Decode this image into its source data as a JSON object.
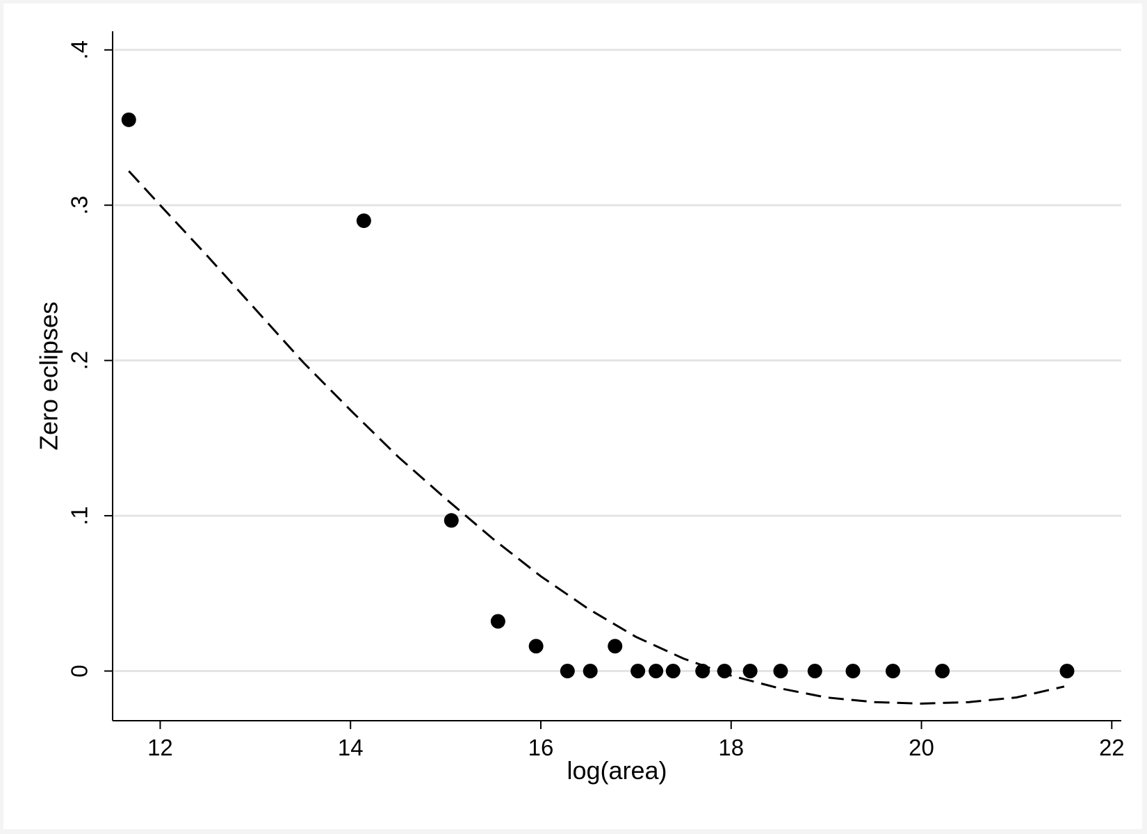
{
  "chart_data": {
    "type": "scatter",
    "title": "",
    "xlabel": "log(area)",
    "ylabel": "Zero eclipses",
    "xlim": [
      11.5,
      22.1
    ],
    "ylim": [
      -0.032,
      0.412
    ],
    "xticks": [
      12,
      14,
      16,
      18,
      20,
      22
    ],
    "xtick_labels": [
      "12",
      "14",
      "16",
      "18",
      "20",
      "22"
    ],
    "yticks": [
      0,
      0.1,
      0.2,
      0.3,
      0.4
    ],
    "ytick_labels": [
      "0",
      ".1",
      ".2",
      ".3",
      ".4"
    ],
    "grid": "horizontal",
    "legend": "none",
    "series": [
      {
        "type": "scatter",
        "marker": "filled-circle",
        "color": "#000000",
        "points": [
          {
            "x": 11.67,
            "y": 0.355
          },
          {
            "x": 14.14,
            "y": 0.29
          },
          {
            "x": 15.06,
            "y": 0.097
          },
          {
            "x": 15.55,
            "y": 0.032
          },
          {
            "x": 15.95,
            "y": 0.016
          },
          {
            "x": 16.28,
            "y": 0.0
          },
          {
            "x": 16.52,
            "y": 0.0
          },
          {
            "x": 16.78,
            "y": 0.016
          },
          {
            "x": 17.02,
            "y": 0.0
          },
          {
            "x": 17.21,
            "y": 0.0
          },
          {
            "x": 17.39,
            "y": 0.0
          },
          {
            "x": 17.7,
            "y": 0.0
          },
          {
            "x": 17.93,
            "y": 0.0
          },
          {
            "x": 18.2,
            "y": 0.0
          },
          {
            "x": 18.52,
            "y": 0.0
          },
          {
            "x": 18.88,
            "y": 0.0
          },
          {
            "x": 19.28,
            "y": 0.0
          },
          {
            "x": 19.7,
            "y": 0.0
          },
          {
            "x": 20.22,
            "y": 0.0
          },
          {
            "x": 21.53,
            "y": 0.0
          }
        ]
      },
      {
        "type": "line",
        "style": "dashed",
        "color": "#000000",
        "points": [
          {
            "x": 11.67,
            "y": 0.322
          },
          {
            "x": 12.0,
            "y": 0.3
          },
          {
            "x": 12.5,
            "y": 0.267
          },
          {
            "x": 13.0,
            "y": 0.233
          },
          {
            "x": 13.5,
            "y": 0.199
          },
          {
            "x": 14.0,
            "y": 0.168
          },
          {
            "x": 14.5,
            "y": 0.138
          },
          {
            "x": 15.0,
            "y": 0.111
          },
          {
            "x": 15.5,
            "y": 0.085
          },
          {
            "x": 16.0,
            "y": 0.061
          },
          {
            "x": 16.5,
            "y": 0.04
          },
          {
            "x": 17.0,
            "y": 0.022
          },
          {
            "x": 17.5,
            "y": 0.008
          },
          {
            "x": 18.0,
            "y": -0.003
          },
          {
            "x": 18.5,
            "y": -0.011
          },
          {
            "x": 19.0,
            "y": -0.017
          },
          {
            "x": 19.5,
            "y": -0.02
          },
          {
            "x": 20.0,
            "y": -0.021
          },
          {
            "x": 20.5,
            "y": -0.02
          },
          {
            "x": 21.0,
            "y": -0.017
          },
          {
            "x": 21.5,
            "y": -0.01
          }
        ]
      }
    ]
  }
}
